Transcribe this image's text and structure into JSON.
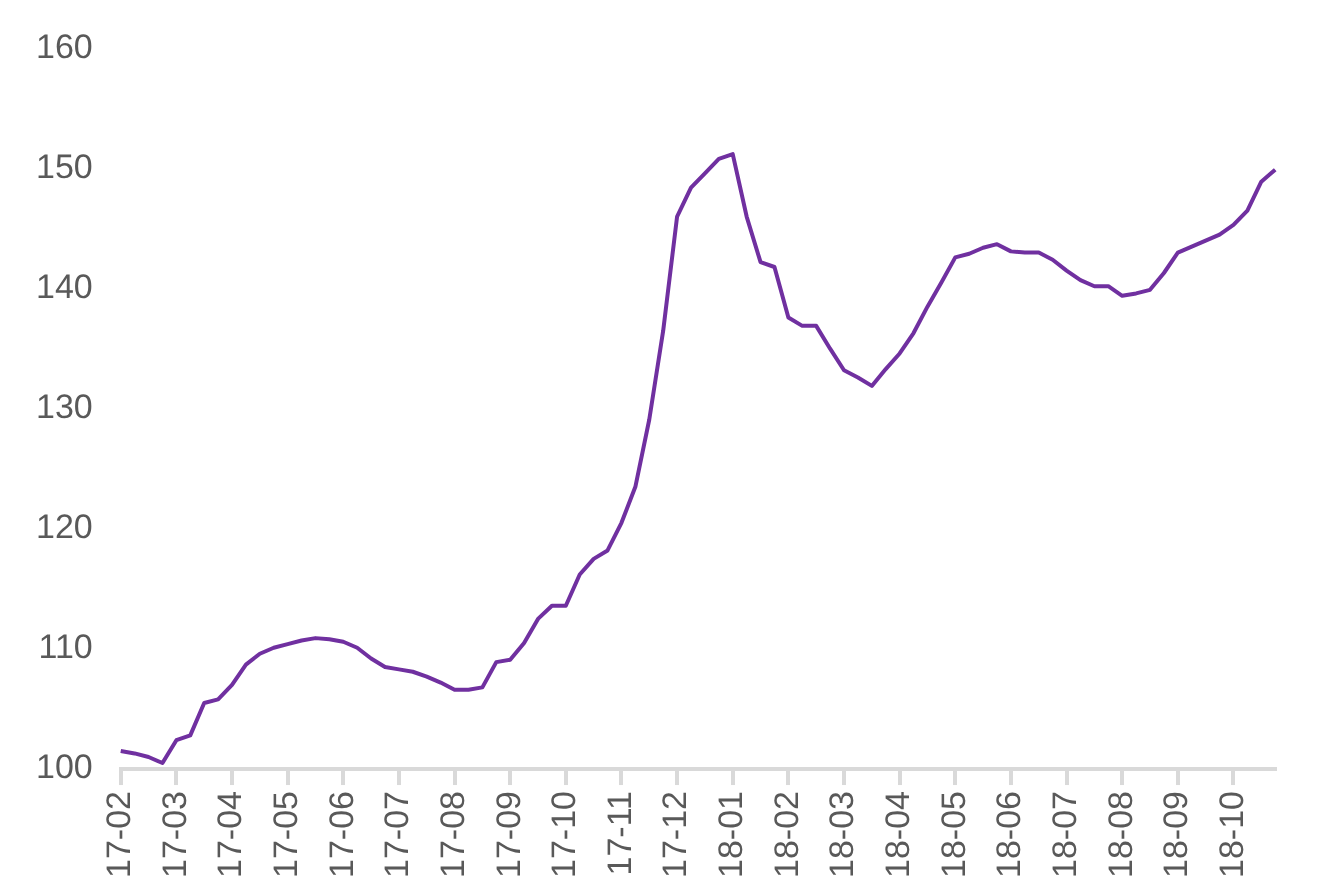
{
  "chart_data": {
    "type": "line",
    "categories": [
      "17-02",
      null,
      null,
      null,
      "17-03",
      null,
      null,
      null,
      "17-04",
      null,
      null,
      null,
      "17-05",
      null,
      null,
      null,
      "17-06",
      null,
      null,
      null,
      "17-07",
      null,
      null,
      null,
      "17-08",
      null,
      null,
      null,
      "17-09",
      null,
      null,
      null,
      "17-10",
      null,
      null,
      null,
      "17-11",
      null,
      null,
      null,
      "17-12",
      null,
      null,
      null,
      "18-01",
      null,
      null,
      null,
      "18-02",
      null,
      null,
      null,
      "18-03",
      null,
      null,
      null,
      "18-04",
      null,
      null,
      null,
      "18-05",
      null,
      null,
      null,
      "18-06",
      null,
      null,
      null,
      "18-07",
      null,
      null,
      null,
      "18-08",
      null,
      null,
      null,
      "18-09",
      null,
      null,
      null,
      "18-10",
      null,
      null,
      null
    ],
    "series": [
      {
        "color": "#7030a0",
        "values": [
          101.5,
          101.3,
          101.0,
          100.5,
          102.4,
          102.8,
          105.5,
          105.8,
          107.0,
          108.7,
          109.6,
          110.1,
          110.4,
          110.7,
          110.9,
          110.8,
          110.6,
          110.1,
          109.2,
          108.5,
          108.3,
          108.1,
          107.7,
          107.2,
          106.6,
          106.6,
          106.8,
          108.9,
          109.1,
          110.5,
          112.5,
          113.6,
          113.6,
          116.2,
          117.5,
          118.2,
          120.5,
          123.5,
          129.1,
          136.5,
          146.0,
          148.4,
          149.6,
          150.8,
          151.2,
          146.0,
          142.2,
          141.8,
          137.6,
          136.9,
          136.9,
          135.0,
          133.2,
          132.6,
          131.9,
          133.3,
          134.6,
          136.3,
          138.5,
          140.5,
          142.6,
          142.9,
          143.4,
          143.7,
          143.1,
          143.0,
          143.0,
          142.4,
          141.5,
          140.7,
          140.2,
          140.2,
          139.4,
          139.6,
          139.9,
          141.3,
          143.0,
          143.5,
          144.0,
          144.5,
          145.3,
          146.5,
          148.9,
          149.9
        ]
      }
    ],
    "ylim": [
      100,
      160
    ],
    "yticks": [
      100,
      110,
      120,
      130,
      140,
      150,
      160
    ],
    "grid": false,
    "legend": false,
    "marker": "none",
    "line_style": "solid"
  }
}
